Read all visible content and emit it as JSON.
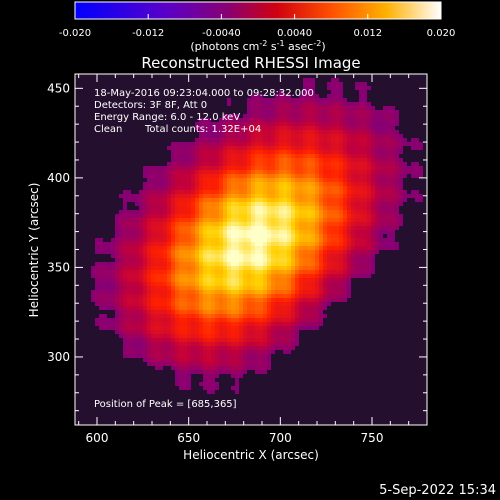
{
  "colorbar": {
    "ticks": [
      "-0.020",
      "-0.012",
      "-0.0040",
      "0.0040",
      "0.012",
      "0.020"
    ],
    "tick_values": [
      -0.02,
      -0.012,
      -0.004,
      0.004,
      0.012,
      0.02
    ],
    "range": [
      -0.02,
      0.02
    ],
    "unit_label": "(photons cm",
    "unit_exp1": "-2",
    "unit_mid": " s",
    "unit_exp2": "-1",
    "unit_mid2": " asec",
    "unit_exp3": "-2",
    "unit_end": ")"
  },
  "chart_data": {
    "type": "heatmap",
    "title": "Reconstructed RHESSI Image",
    "xlabel": "Heliocentric X (arcsec)",
    "ylabel": "Heliocentric Y (arcsec)",
    "xlim": [
      588,
      780
    ],
    "ylim": [
      262,
      458
    ],
    "xticks": [
      600,
      650,
      700,
      750
    ],
    "yticks": [
      300,
      350,
      400,
      450
    ],
    "peak": [
      685,
      365
    ],
    "colormap": "rhessi-thermal",
    "colormap_stops": [
      "#0000ff",
      "#3a00a8",
      "#6a0090",
      "#c0003c",
      "#ff2000",
      "#ff7e00",
      "#ffd000",
      "#ffffc8"
    ]
  },
  "annotations": {
    "time_range": "18-May-2016 09:23:04.000 to 09:28:32.000",
    "detectors": "Detectors: 3F 8F, Att 0",
    "energy": "Energy Range: 6.0 - 12.0 keV",
    "method": "Clean",
    "counts": "Total counts: 1.32E+04",
    "peak_text": "Position of Peak = [685,365]"
  },
  "footer": {
    "timestamp": "5-Sep-2022 15:34"
  }
}
